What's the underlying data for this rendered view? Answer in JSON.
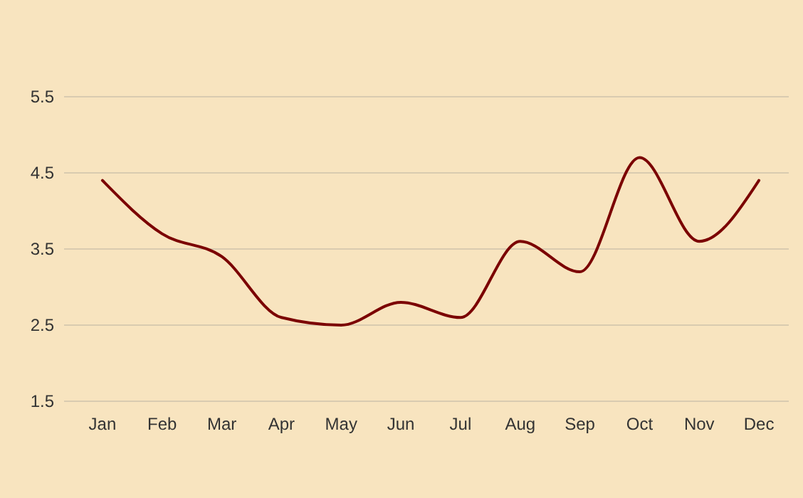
{
  "chart_data": {
    "type": "line",
    "categories": [
      "Jan",
      "Feb",
      "Mar",
      "Apr",
      "May",
      "Jun",
      "Jul",
      "Aug",
      "Sep",
      "Oct",
      "Nov",
      "Dec"
    ],
    "series": [
      {
        "color": "#7b0000",
        "values": [
          4.4,
          3.7,
          3.4,
          2.6,
          2.5,
          2.8,
          2.6,
          3.6,
          3.2,
          4.7,
          3.6,
          4.4
        ]
      }
    ],
    "ylim": [
      1.5,
      5.5
    ],
    "yticks": [
      1.5,
      2.5,
      3.5,
      4.5,
      5.5
    ],
    "grid": "y",
    "marker": "none",
    "line_style": "solid"
  }
}
